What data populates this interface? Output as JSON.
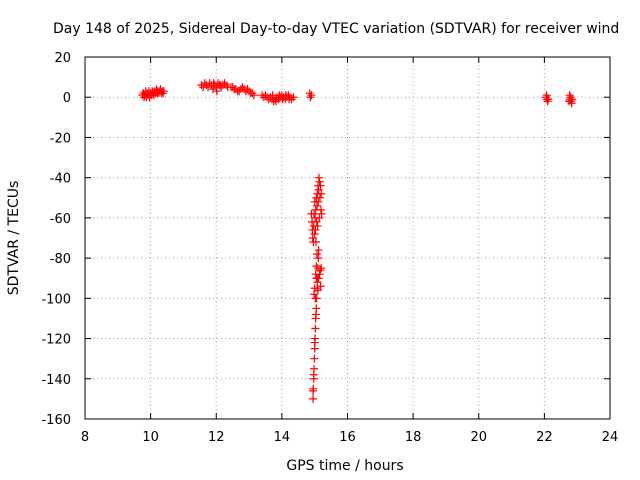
{
  "chart_data": {
    "type": "scatter",
    "title": "Day 148 of 2025, Sidereal Day-to-day VTEC variation (SDTVAR) for receiver wind",
    "xlabel": "GPS time / hours",
    "ylabel": "SDTVAR / TECUs",
    "xlim": [
      8,
      24
    ],
    "ylim": [
      -160,
      20
    ],
    "xticks": [
      "8",
      "10",
      "12",
      "14",
      "16",
      "18",
      "20",
      "22",
      "24"
    ],
    "yticks": [
      "20",
      "0",
      "-20",
      "-40",
      "-60",
      "-80",
      "-100",
      "-120",
      "-140",
      "-160"
    ],
    "grid": true,
    "marker": "plus",
    "color": "#ff0000",
    "series": [
      {
        "name": "SDTVAR",
        "points": [
          [
            9.75,
            1
          ],
          [
            9.78,
            2
          ],
          [
            9.8,
            0
          ],
          [
            9.82,
            1
          ],
          [
            9.85,
            3
          ],
          [
            9.87,
            0
          ],
          [
            9.9,
            2
          ],
          [
            9.92,
            1
          ],
          [
            9.95,
            3
          ],
          [
            9.97,
            0
          ],
          [
            10.0,
            2
          ],
          [
            10.02,
            1
          ],
          [
            10.05,
            3
          ],
          [
            10.07,
            2
          ],
          [
            10.1,
            1
          ],
          [
            10.12,
            3
          ],
          [
            10.15,
            2
          ],
          [
            10.18,
            4
          ],
          [
            10.2,
            2
          ],
          [
            10.22,
            3
          ],
          [
            10.25,
            2
          ],
          [
            10.28,
            3
          ],
          [
            10.3,
            4
          ],
          [
            10.33,
            2
          ],
          [
            10.35,
            3
          ],
          [
            10.38,
            2
          ],
          [
            10.4,
            3
          ],
          [
            11.55,
            6
          ],
          [
            11.6,
            5
          ],
          [
            11.65,
            7
          ],
          [
            11.7,
            6
          ],
          [
            11.75,
            5
          ],
          [
            11.8,
            7
          ],
          [
            11.85,
            6
          ],
          [
            11.9,
            4
          ],
          [
            11.95,
            6
          ],
          [
            12.0,
            5
          ],
          [
            12.05,
            7
          ],
          [
            12.1,
            6
          ],
          [
            12.15,
            5
          ],
          [
            12.2,
            6
          ],
          [
            12.25,
            7
          ],
          [
            12.3,
            6
          ],
          [
            12.35,
            5
          ],
          [
            11.92,
            7
          ],
          [
            12.02,
            3
          ],
          [
            12.12,
            6
          ],
          [
            12.45,
            5
          ],
          [
            12.5,
            5
          ],
          [
            12.55,
            4
          ],
          [
            12.6,
            4
          ],
          [
            12.65,
            3
          ],
          [
            12.7,
            3
          ],
          [
            12.75,
            4
          ],
          [
            12.8,
            5
          ],
          [
            12.85,
            4
          ],
          [
            12.9,
            3
          ],
          [
            12.95,
            4
          ],
          [
            13.0,
            3
          ],
          [
            13.05,
            2
          ],
          [
            13.1,
            2
          ],
          [
            13.15,
            1
          ],
          [
            13.4,
            1
          ],
          [
            13.45,
            0
          ],
          [
            13.5,
            1
          ],
          [
            13.55,
            0
          ],
          [
            13.6,
            -1
          ],
          [
            13.65,
            0
          ],
          [
            13.7,
            -1
          ],
          [
            13.75,
            -2
          ],
          [
            13.8,
            -1
          ],
          [
            13.85,
            0
          ],
          [
            13.9,
            -1
          ],
          [
            13.95,
            0
          ],
          [
            14.0,
            1
          ],
          [
            14.05,
            0
          ],
          [
            14.1,
            -1
          ],
          [
            14.15,
            0
          ],
          [
            14.2,
            1
          ],
          [
            14.25,
            0
          ],
          [
            14.3,
            -1
          ],
          [
            14.35,
            0
          ],
          [
            13.72,
            1
          ],
          [
            13.82,
            -2
          ],
          [
            13.92,
            1
          ],
          [
            14.02,
            -1
          ],
          [
            14.12,
            1
          ],
          [
            14.22,
            -1
          ],
          [
            14.85,
            2
          ],
          [
            14.87,
            0
          ],
          [
            14.9,
            1
          ],
          [
            14.9,
            -58
          ],
          [
            14.92,
            -62
          ],
          [
            14.93,
            -66
          ],
          [
            14.94,
            -70
          ],
          [
            14.96,
            -72
          ],
          [
            14.97,
            -64
          ],
          [
            14.98,
            -58
          ],
          [
            15.0,
            -52
          ],
          [
            15.01,
            -60
          ],
          [
            15.02,
            -66
          ],
          [
            15.03,
            -56
          ],
          [
            15.05,
            -50
          ],
          [
            15.06,
            -62
          ],
          [
            15.07,
            -54
          ],
          [
            15.08,
            -48
          ],
          [
            15.1,
            -44
          ],
          [
            15.11,
            -52
          ],
          [
            15.12,
            -46
          ],
          [
            15.13,
            -40
          ],
          [
            15.15,
            -42
          ],
          [
            15.16,
            -50
          ],
          [
            15.18,
            -44
          ],
          [
            15.19,
            -56
          ],
          [
            15.2,
            -48
          ],
          [
            15.21,
            -58
          ],
          [
            15.0,
            -68
          ],
          [
            15.04,
            -72
          ],
          [
            15.09,
            -64
          ],
          [
            15.14,
            -60
          ],
          [
            15.0,
            -95
          ],
          [
            14.98,
            -98
          ],
          [
            15.02,
            -100
          ],
          [
            15.05,
            -90
          ],
          [
            15.08,
            -92
          ],
          [
            15.12,
            -90
          ],
          [
            15.15,
            -88
          ],
          [
            15.17,
            -86
          ],
          [
            15.2,
            -85
          ],
          [
            15.18,
            -94
          ],
          [
            15.1,
            -96
          ],
          [
            14.95,
            -150
          ],
          [
            14.96,
            -145
          ],
          [
            14.97,
            -140
          ],
          [
            14.98,
            -135
          ],
          [
            14.99,
            -130
          ],
          [
            15.0,
            -125
          ],
          [
            15.01,
            -120
          ],
          [
            15.02,
            -115
          ],
          [
            15.03,
            -110
          ],
          [
            15.05,
            -105
          ],
          [
            15.06,
            -100
          ],
          [
            15.08,
            -95
          ],
          [
            15.09,
            -90
          ],
          [
            15.1,
            -85
          ],
          [
            15.11,
            -80
          ],
          [
            15.12,
            -76
          ],
          [
            15.05,
            -84
          ],
          [
            15.07,
            -78
          ],
          [
            15.03,
            -88
          ],
          [
            14.95,
            -146
          ],
          [
            14.97,
            -138
          ],
          [
            15.0,
            -122
          ],
          [
            15.04,
            -108
          ],
          [
            22.05,
            0
          ],
          [
            22.08,
            -1
          ],
          [
            22.1,
            -2
          ],
          [
            22.07,
            1
          ],
          [
            22.12,
            -1
          ],
          [
            22.75,
            -2
          ],
          [
            22.78,
            -1
          ],
          [
            22.8,
            0
          ],
          [
            22.82,
            -2
          ],
          [
            22.85,
            -1
          ],
          [
            22.77,
            1
          ],
          [
            22.83,
            -3
          ]
        ]
      }
    ]
  }
}
